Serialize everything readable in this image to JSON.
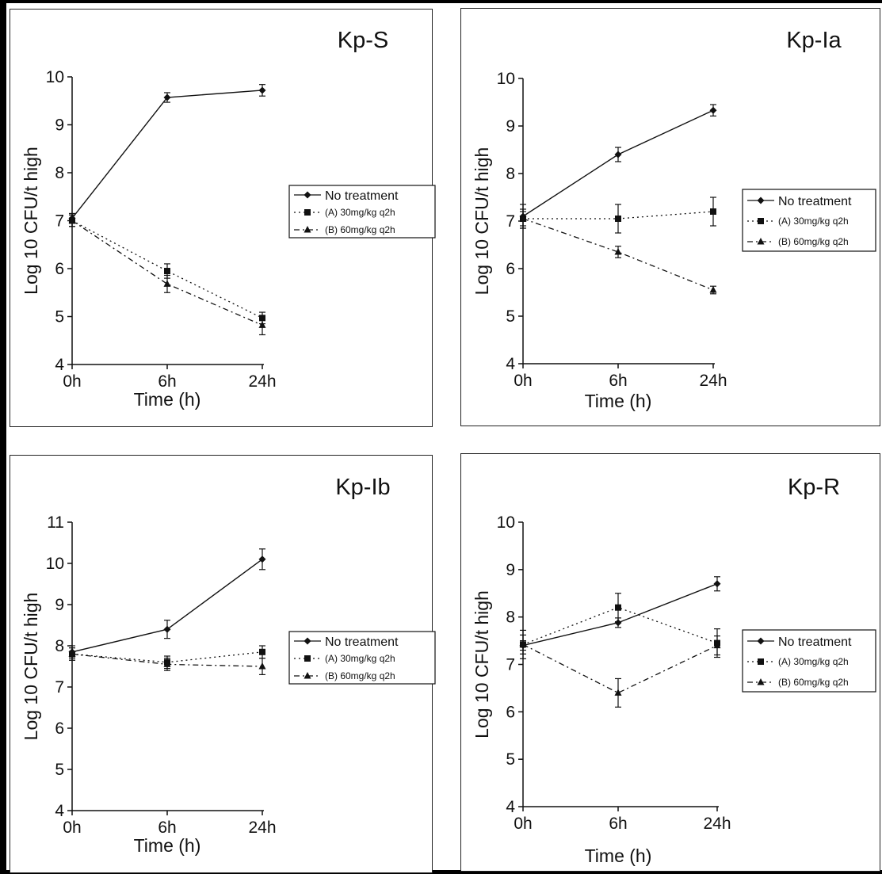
{
  "chart_data": [
    {
      "type": "line",
      "title": "Kp-S",
      "xlabel": "Time (h)",
      "ylabel": "Log 10 CFU/t high",
      "categories": [
        "0h",
        "6h",
        "24h"
      ],
      "ylim": [
        4,
        10
      ],
      "yticks": [
        4,
        5,
        6,
        7,
        8,
        9,
        10
      ],
      "grid": false,
      "legend_position": "right",
      "series": [
        {
          "name": "No treatment",
          "marker": "diamond",
          "dash": "solid",
          "values": [
            7.05,
            9.57,
            9.72
          ],
          "errors": [
            0.1,
            0.1,
            0.12
          ]
        },
        {
          "name": "(A) 30mg/kg q2h",
          "marker": "square",
          "dash": "dotted",
          "values": [
            7.0,
            5.95,
            4.97
          ],
          "errors": [
            0.12,
            0.15,
            0.12
          ]
        },
        {
          "name": "(B) 60mg/kg q2h",
          "marker": "triangle",
          "dash": "dashdot",
          "values": [
            7.0,
            5.68,
            4.82
          ],
          "errors": [
            0.12,
            0.18,
            0.2
          ]
        }
      ]
    },
    {
      "type": "line",
      "title": "Kp-Ia",
      "xlabel": "Time (h)",
      "ylabel": "Log 10 CFU/t high",
      "categories": [
        "0h",
        "6h",
        "24h"
      ],
      "ylim": [
        4,
        10
      ],
      "yticks": [
        4,
        5,
        6,
        7,
        8,
        9,
        10
      ],
      "grid": false,
      "legend_position": "right",
      "series": [
        {
          "name": "No treatment",
          "marker": "diamond",
          "dash": "solid",
          "values": [
            7.1,
            8.4,
            9.33
          ],
          "errors": [
            0.25,
            0.15,
            0.12
          ]
        },
        {
          "name": "(A) 30mg/kg q2h",
          "marker": "square",
          "dash": "dotted",
          "values": [
            7.05,
            7.05,
            7.2
          ],
          "errors": [
            0.2,
            0.3,
            0.3
          ]
        },
        {
          "name": "(B) 60mg/kg q2h",
          "marker": "triangle",
          "dash": "dashdot",
          "values": [
            7.05,
            6.35,
            5.55
          ],
          "errors": [
            0.15,
            0.12,
            0.08
          ]
        }
      ]
    },
    {
      "type": "line",
      "title": "Kp-Ib",
      "xlabel": "Time (h)",
      "ylabel": "Log 10 CFU/t high",
      "categories": [
        "0h",
        "6h",
        "24h"
      ],
      "ylim": [
        4,
        11
      ],
      "yticks": [
        4,
        5,
        6,
        7,
        8,
        9,
        10,
        11
      ],
      "grid": false,
      "legend_position": "right",
      "series": [
        {
          "name": "No treatment",
          "marker": "diamond",
          "dash": "solid",
          "values": [
            7.85,
            8.4,
            10.1
          ],
          "errors": [
            0.15,
            0.22,
            0.25
          ]
        },
        {
          "name": "(A) 30mg/kg q2h",
          "marker": "square",
          "dash": "dotted",
          "values": [
            7.8,
            7.6,
            7.85
          ],
          "errors": [
            0.15,
            0.15,
            0.15
          ]
        },
        {
          "name": "(B) 60mg/kg q2h",
          "marker": "triangle",
          "dash": "dashdot",
          "values": [
            7.8,
            7.55,
            7.5
          ],
          "errors": [
            0.15,
            0.15,
            0.2
          ]
        }
      ]
    },
    {
      "type": "line",
      "title": "Kp-R",
      "xlabel": "Time (h)",
      "ylabel": "Log 10 CFU/t high",
      "categories": [
        "0h",
        "6h",
        "24h"
      ],
      "ylim": [
        4,
        10
      ],
      "yticks": [
        4,
        5,
        6,
        7,
        8,
        9,
        10
      ],
      "grid": false,
      "legend_position": "right",
      "series": [
        {
          "name": "No treatment",
          "marker": "diamond",
          "dash": "solid",
          "values": [
            7.4,
            7.88,
            8.7
          ],
          "errors": [
            0.1,
            0.1,
            0.15
          ]
        },
        {
          "name": "(A) 30mg/kg q2h",
          "marker": "square",
          "dash": "dotted",
          "values": [
            7.42,
            8.2,
            7.45
          ],
          "errors": [
            0.3,
            0.3,
            0.3
          ]
        },
        {
          "name": "(B) 60mg/kg q2h",
          "marker": "triangle",
          "dash": "dashdot",
          "values": [
            7.42,
            6.4,
            7.4
          ],
          "errors": [
            0.2,
            0.3,
            0.2
          ]
        }
      ]
    }
  ]
}
